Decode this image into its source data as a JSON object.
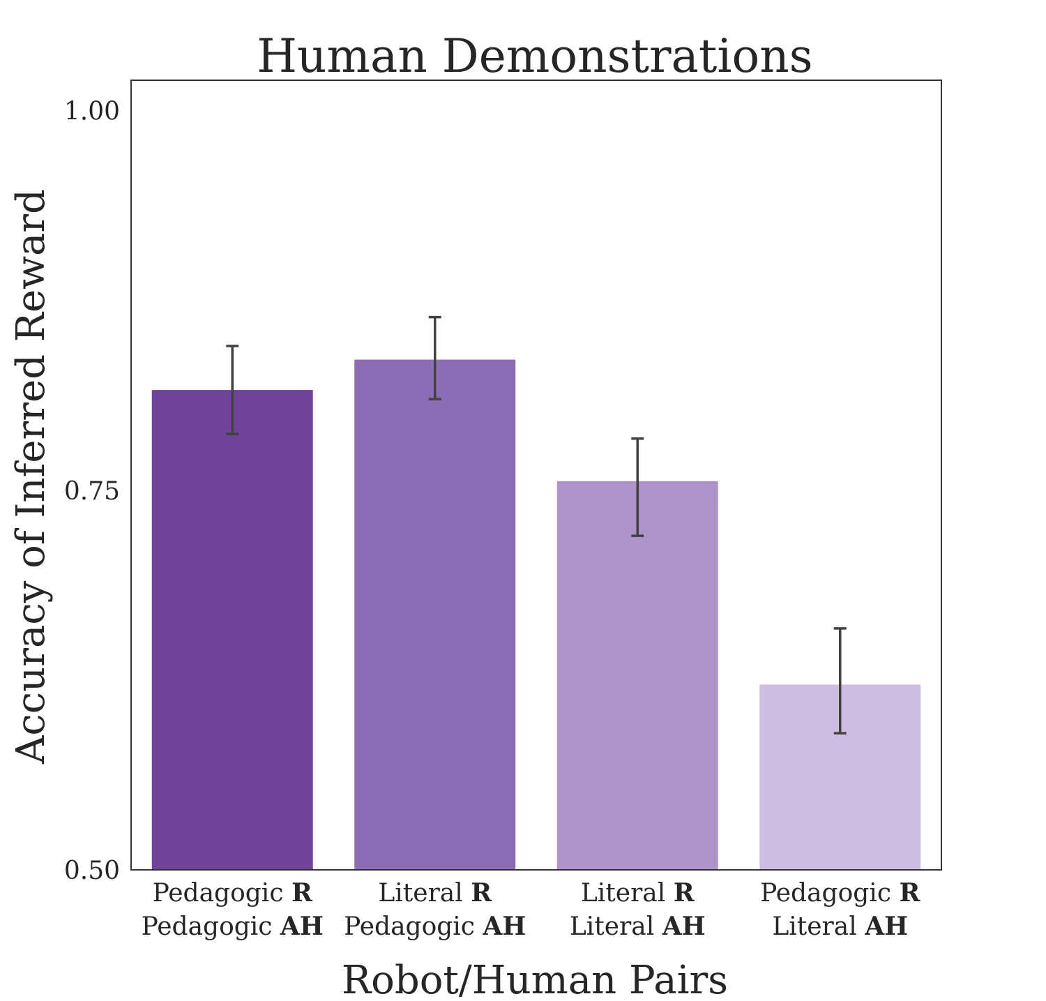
{
  "chart_data": {
    "type": "bar",
    "title": "Human Demonstrations",
    "xlabel": "Robot/Human Pairs",
    "ylabel": "Accuracy of Inferred Reward",
    "ylim": [
      0.5,
      1.02
    ],
    "yticks": [
      "0.50",
      "0.75",
      "1.00"
    ],
    "ytick_values": [
      0.5,
      0.75,
      1.0
    ],
    "grid": false,
    "categories": [
      {
        "line1_text": "Pedagogic ",
        "line1_bold": "R",
        "line2_text": "Pedagogic ",
        "line2_bold": "AH"
      },
      {
        "line1_text": "Literal ",
        "line1_bold": "R",
        "line2_text": "Pedagogic ",
        "line2_bold": "AH"
      },
      {
        "line1_text": "Literal ",
        "line1_bold": "R",
        "line2_text": "Literal ",
        "line2_bold": "AH"
      },
      {
        "line1_text": "Pedagogic ",
        "line1_bold": "R",
        "line2_text": "Literal ",
        "line2_bold": "AH"
      }
    ],
    "values": [
      0.816,
      0.836,
      0.756,
      0.622
    ],
    "error_low": [
      0.787,
      0.81,
      0.72,
      0.59
    ],
    "error_high": [
      0.845,
      0.864,
      0.784,
      0.659
    ],
    "colors": [
      "#6f439b",
      "#8d6cb6",
      "#ac94ca",
      "#cfbee3"
    ]
  }
}
